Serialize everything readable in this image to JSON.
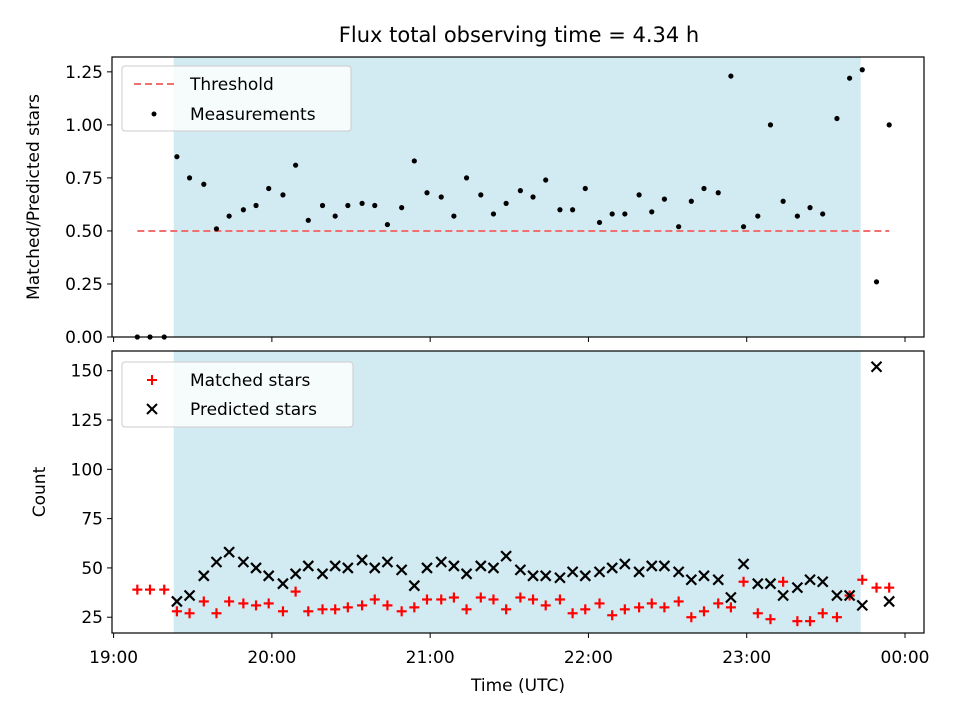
{
  "title": "Flux total observing time = 4.34 h",
  "colors": {
    "threshold": "#f07070",
    "measurement": "#000000",
    "matched": "#ff0000",
    "predicted": "#000000",
    "observing_span": "#add8e6"
  },
  "chart_data": [
    {
      "type": "scatter",
      "ylabel": "Matched/Predicted stars",
      "xlabel": "",
      "xlim_hours": [
        18.99,
        24.12
      ],
      "ylim": [
        0,
        1.32
      ],
      "yticks": [
        "0.00",
        "0.25",
        "0.50",
        "0.75",
        "1.00",
        "1.25"
      ],
      "shaded_span_hours": [
        19.38,
        23.72
      ],
      "threshold": {
        "name": "Threshold",
        "value": 0.5,
        "x_range_hours": [
          19.15,
          23.9
        ]
      },
      "legend": {
        "placement": "top-left",
        "entries": [
          "Threshold",
          "Measurements"
        ]
      },
      "series": [
        {
          "name": "Measurements",
          "x_hours": [
            19.15,
            19.23,
            19.32,
            19.4,
            19.48,
            19.57,
            19.65,
            19.73,
            19.82,
            19.9,
            19.98,
            20.07,
            20.15,
            20.23,
            20.32,
            20.4,
            20.48,
            20.57,
            20.65,
            20.73,
            20.82,
            20.9,
            20.98,
            21.07,
            21.15,
            21.23,
            21.32,
            21.4,
            21.48,
            21.57,
            21.65,
            21.73,
            21.82,
            21.9,
            21.98,
            22.07,
            22.15,
            22.23,
            22.32,
            22.4,
            22.48,
            22.57,
            22.65,
            22.73,
            22.82,
            22.9,
            22.98,
            23.07,
            23.15,
            23.23,
            23.32,
            23.4,
            23.48,
            23.57,
            23.65,
            23.73,
            23.82,
            23.9
          ],
          "y": [
            0.0,
            0.0,
            0.0,
            0.85,
            0.75,
            0.72,
            0.51,
            0.57,
            0.6,
            0.62,
            0.7,
            0.67,
            0.81,
            0.55,
            0.62,
            0.57,
            0.62,
            0.63,
            0.62,
            0.53,
            0.61,
            0.83,
            0.68,
            0.66,
            0.57,
            0.75,
            0.67,
            0.58,
            0.63,
            0.69,
            0.66,
            0.74,
            0.6,
            0.6,
            0.7,
            0.54,
            0.58,
            0.58,
            0.67,
            0.59,
            0.65,
            0.52,
            0.64,
            0.7,
            0.68,
            1.23,
            0.52,
            0.57,
            1.0,
            0.64,
            0.57,
            0.61,
            0.58,
            1.03,
            1.22,
            1.26,
            0.26,
            1.0
          ]
        }
      ]
    },
    {
      "type": "scatter",
      "ylabel": "Count",
      "xlabel": "Time (UTC)",
      "xlim_hours": [
        18.99,
        24.12
      ],
      "ylim": [
        17,
        160
      ],
      "yticks": [
        "25",
        "50",
        "75",
        "100",
        "125",
        "150"
      ],
      "xticks": [
        "19:00",
        "20:00",
        "21:00",
        "22:00",
        "23:00",
        "00:00"
      ],
      "shaded_span_hours": [
        19.38,
        23.72
      ],
      "legend": {
        "placement": "top-left",
        "entries": [
          "Matched stars",
          "Predicted stars"
        ]
      },
      "series": [
        {
          "name": "Matched stars",
          "x_hours": [
            19.15,
            19.23,
            19.32,
            19.4,
            19.48,
            19.57,
            19.65,
            19.73,
            19.82,
            19.9,
            19.98,
            20.07,
            20.15,
            20.23,
            20.32,
            20.4,
            20.48,
            20.57,
            20.65,
            20.73,
            20.82,
            20.9,
            20.98,
            21.07,
            21.15,
            21.23,
            21.32,
            21.4,
            21.48,
            21.57,
            21.65,
            21.73,
            21.82,
            21.9,
            21.98,
            22.07,
            22.15,
            22.23,
            22.32,
            22.4,
            22.48,
            22.57,
            22.65,
            22.73,
            22.82,
            22.9,
            22.98,
            23.07,
            23.15,
            23.23,
            23.32,
            23.4,
            23.48,
            23.57,
            23.65,
            23.73,
            23.82,
            23.9
          ],
          "y": [
            39,
            39,
            39,
            28,
            27,
            33,
            27,
            33,
            32,
            31,
            32,
            28,
            38,
            28,
            29,
            29,
            30,
            31,
            34,
            31,
            28,
            30,
            34,
            34,
            35,
            29,
            35,
            34,
            29,
            35,
            34,
            31,
            34,
            27,
            29,
            32,
            26,
            29,
            30,
            32,
            30,
            33,
            25,
            28,
            32,
            30,
            43,
            27,
            24,
            43,
            23,
            23,
            27,
            25,
            36,
            44,
            40,
            40
          ]
        },
        {
          "name": "Predicted stars",
          "x_hours": [
            19.4,
            19.48,
            19.57,
            19.65,
            19.73,
            19.82,
            19.9,
            19.98,
            20.07,
            20.15,
            20.23,
            20.32,
            20.4,
            20.48,
            20.57,
            20.65,
            20.73,
            20.82,
            20.9,
            20.98,
            21.07,
            21.15,
            21.23,
            21.32,
            21.4,
            21.48,
            21.57,
            21.65,
            21.73,
            21.82,
            21.9,
            21.98,
            22.07,
            22.15,
            22.23,
            22.32,
            22.4,
            22.48,
            22.57,
            22.65,
            22.73,
            22.82,
            22.9,
            22.98,
            23.07,
            23.15,
            23.23,
            23.32,
            23.4,
            23.48,
            23.57,
            23.65,
            23.73,
            23.82,
            23.9
          ],
          "y": [
            33,
            36,
            46,
            53,
            58,
            53,
            50,
            46,
            42,
            47,
            51,
            47,
            51,
            50,
            54,
            50,
            53,
            49,
            41,
            50,
            53,
            51,
            47,
            51,
            50,
            56,
            49,
            46,
            46,
            45,
            48,
            46,
            48,
            50,
            52,
            48,
            51,
            51,
            48,
            44,
            46,
            44,
            35,
            52,
            42,
            42,
            36,
            40,
            44,
            43,
            36,
            36,
            31,
            152,
            33
          ]
        }
      ]
    }
  ]
}
